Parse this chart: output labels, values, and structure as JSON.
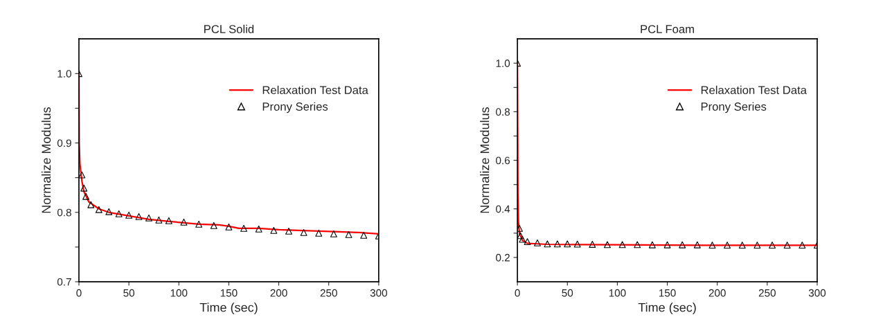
{
  "chart_data": [
    {
      "type": "line",
      "title": "PCL Solid",
      "xlabel": "Time (sec)",
      "ylabel": "Normalize Modulus",
      "xlim": [
        0,
        300
      ],
      "xticks": [
        0,
        50,
        100,
        150,
        200,
        250,
        300
      ],
      "ylim": [
        0.7,
        1.05
      ],
      "yticks": [
        0.7,
        {
          "value": 0.75,
          "label": null
        },
        0.8,
        {
          "value": 0.85,
          "label": null
        },
        0.9,
        {
          "value": 0.95,
          "label": null
        },
        {
          "value": 1.0,
          "label": "1.0"
        }
      ],
      "legend": "top right",
      "grid": false,
      "series": [
        {
          "name": "Relaxation Test Data",
          "color": "#ff0000",
          "line_style": "solid",
          "x": [
            0,
            0.3,
            1,
            3,
            5,
            10,
            20,
            30,
            50,
            70,
            90,
            105,
            120,
            140,
            150,
            160,
            180,
            200,
            220,
            240,
            260,
            280,
            300
          ],
          "values": [
            1.0,
            0.9,
            0.87,
            0.845,
            0.83,
            0.815,
            0.805,
            0.8,
            0.795,
            0.79,
            0.787,
            0.785,
            0.783,
            0.782,
            0.78,
            0.777,
            0.777,
            0.775,
            0.774,
            0.773,
            0.772,
            0.771,
            0.769
          ]
        },
        {
          "name": "Prony Series",
          "type": "scatter",
          "color": "#000000",
          "marker": "triangle",
          "x": [
            0,
            3,
            5,
            7,
            12,
            20,
            30,
            40,
            50,
            60,
            70,
            80,
            90,
            105,
            120,
            135,
            150,
            165,
            180,
            195,
            210,
            225,
            240,
            255,
            270,
            285,
            300
          ],
          "values": [
            1.0,
            0.854,
            0.835,
            0.823,
            0.811,
            0.804,
            0.801,
            0.798,
            0.796,
            0.794,
            0.792,
            0.789,
            0.788,
            0.786,
            0.783,
            0.781,
            0.779,
            0.777,
            0.776,
            0.774,
            0.773,
            0.771,
            0.77,
            0.769,
            0.768,
            0.767,
            0.766
          ]
        }
      ]
    },
    {
      "type": "line",
      "title": "PCL Foam",
      "xlabel": "Time (sec)",
      "ylabel": "Normalize Modulus",
      "xlim": [
        0,
        300
      ],
      "xticks": [
        0,
        50,
        100,
        150,
        200,
        250,
        300
      ],
      "ylim": [
        0.1,
        1.1
      ],
      "yticks": [
        0.2,
        {
          "value": 0.3,
          "label": null
        },
        0.4,
        {
          "value": 0.5,
          "label": null
        },
        0.6,
        {
          "value": 0.7,
          "label": null
        },
        0.8,
        {
          "value": 0.9,
          "label": null
        },
        {
          "value": 1.0,
          "label": "1.0"
        }
      ],
      "legend": "top right",
      "grid": false,
      "series": [
        {
          "name": "Relaxation Test Data",
          "color": "#ff0000",
          "line_style": "solid",
          "x": [
            0,
            0.5,
            1,
            2,
            5,
            10,
            30,
            60,
            100,
            150,
            200,
            250,
            300
          ],
          "values": [
            1.0,
            0.45,
            0.35,
            0.3,
            0.27,
            0.258,
            0.254,
            0.253,
            0.252,
            0.251,
            0.25,
            0.25,
            0.25
          ]
        },
        {
          "name": "Prony Series",
          "type": "scatter",
          "color": "#000000",
          "marker": "triangle",
          "x": [
            0,
            2,
            3,
            5,
            10,
            20,
            30,
            40,
            50,
            60,
            75,
            90,
            105,
            120,
            135,
            150,
            165,
            180,
            195,
            210,
            225,
            240,
            255,
            270,
            285,
            300
          ],
          "values": [
            1.0,
            0.32,
            0.29,
            0.275,
            0.265,
            0.26,
            0.256,
            0.256,
            0.256,
            0.255,
            0.254,
            0.253,
            0.253,
            0.253,
            0.252,
            0.252,
            0.252,
            0.252,
            0.251,
            0.251,
            0.251,
            0.251,
            0.251,
            0.251,
            0.251,
            0.251
          ]
        }
      ]
    }
  ]
}
